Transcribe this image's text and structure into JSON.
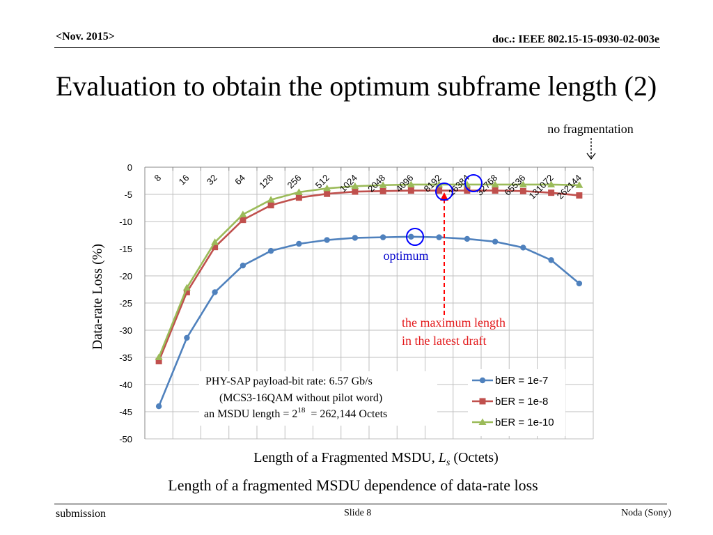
{
  "slide": {
    "header_date": "<Nov. 2015>",
    "header_doc": "doc.: IEEE 802.15-15-0930-02-003e",
    "title": "Evaluation to obtain the optimum subframe length (2)",
    "footer_left": "submission",
    "footer_center": "Slide 8",
    "footer_right": "Noda (Sony)",
    "caption": "Length of a fragmented MSDU dependence of data-rate loss"
  },
  "annotations": {
    "no_fragmentation": "no fragmentation",
    "optimum": "optimum",
    "max_length_line1": "the maximum length",
    "max_length_line2": "in the latest draft",
    "info_line1": "PHY-SAP payload-bit rate: 6.57 Gb/s",
    "info_line2": "(MCS3-16QAM without pilot word)",
    "info_line3_prefix": "an MSDU length = 2",
    "info_line3_sup": "18",
    "info_line3_suffix": "  = 262,144 Octets"
  },
  "colors": {
    "series1": "#4f81bd",
    "series2": "#c0504d",
    "series3": "#9bbb59",
    "marker_circle": "#0000ff",
    "max_line": "#ff0000",
    "optimum_text": "#0000cc",
    "grid": "#bfbfbf"
  },
  "chart_data": {
    "type": "line",
    "title": "",
    "xlabel_prefix": "Length of a Fragmented MSDU, ",
    "xlabel_var": "L",
    "xlabel_sub": "s",
    "xlabel_suffix": " (Octets)",
    "ylabel": "Data-rate Loss (%)",
    "ylim": [
      -50,
      0
    ],
    "yticks": [
      "0",
      "-5",
      "-10",
      "-15",
      "-20",
      "-25",
      "-30",
      "-35",
      "-40",
      "-45",
      "-50"
    ],
    "categories": [
      "8",
      "16",
      "32",
      "64",
      "128",
      "256",
      "512",
      "1024",
      "2048",
      "4096",
      "8192",
      "16384",
      "32768",
      "65536",
      "131072",
      "262144"
    ],
    "legend_position": "bottom-right",
    "series": [
      {
        "name": "bER = 1e-7",
        "marker": "circle",
        "values": [
          -44.0,
          -31.4,
          -23.0,
          -18.1,
          -15.4,
          -14.1,
          -13.4,
          -13.0,
          -12.9,
          -12.8,
          -12.9,
          -13.2,
          -13.7,
          -14.8,
          -17.1,
          -21.4
        ]
      },
      {
        "name": "bER = 1e-8",
        "marker": "square",
        "values": [
          -35.7,
          -23.0,
          -14.7,
          -9.7,
          -7.0,
          -5.6,
          -4.9,
          -4.5,
          -4.4,
          -4.3,
          -4.3,
          -4.3,
          -4.3,
          -4.4,
          -4.7,
          -5.2
        ]
      },
      {
        "name": "bER = 1e-10",
        "marker": "triangle",
        "values": [
          -35.0,
          -22.2,
          -13.8,
          -8.7,
          -6.0,
          -4.6,
          -3.9,
          -3.5,
          -3.3,
          -3.2,
          -3.2,
          -3.2,
          -3.2,
          -3.2,
          -3.2,
          -3.3
        ]
      }
    ]
  }
}
